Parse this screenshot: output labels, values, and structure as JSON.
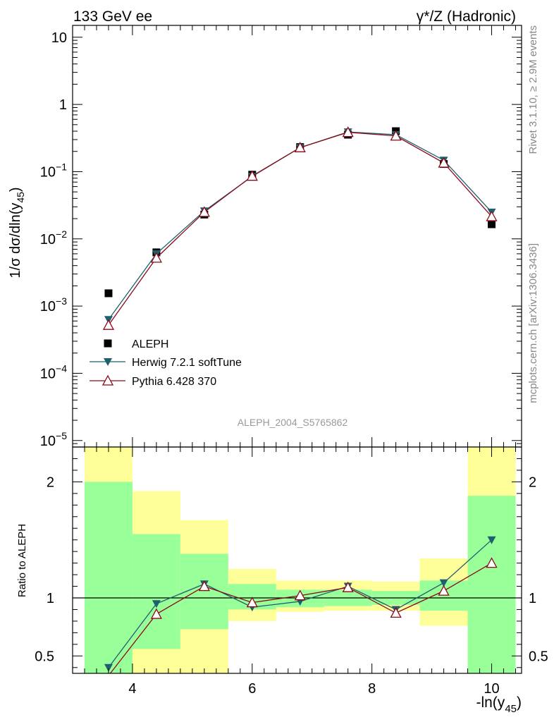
{
  "header": {
    "left": "133 GeV ee",
    "right": "γ*/Z (Hadronic)"
  },
  "side_notes": {
    "rivet": "Rivet 3.1.10, ≥ 2.9M events",
    "mcplots": "mcplots.cern.ch [arXiv:1306.3436]"
  },
  "analysis_label": "ALEPH_2004_S5765862",
  "colors": {
    "aleph": "#000000",
    "herwig": "#1f5f6e",
    "pythia": "#8b0a1a",
    "band_inner": "#99ff99",
    "band_outer": "#ffff99"
  },
  "chart_data": [
    {
      "type": "scatter",
      "title": "133 GeV ee — γ*/Z (Hadronic)",
      "xlabel": "-ln(y45)",
      "ylabel": "1/σ dσ/dln(y45)",
      "yscale": "log",
      "xlim": [
        3.0,
        10.5
      ],
      "ylim": [
        8e-06,
        15
      ],
      "grid": false,
      "legend": "middle-left",
      "ytick_labels": [
        "10",
        "1",
        "10−1",
        "10−2",
        "10−3",
        "10−4",
        "10−5"
      ],
      "series": [
        {
          "name": "ALEPH",
          "marker": "square",
          "x": [
            3.6,
            4.4,
            5.2,
            6.0,
            6.8,
            7.6,
            8.4,
            9.2,
            10.0
          ],
          "values": [
            0.00155,
            0.0063,
            0.023,
            0.09,
            0.232,
            0.355,
            0.4,
            0.13,
            0.0165
          ]
        },
        {
          "name": "Herwig 7.2.1 softTune",
          "marker": "triangle-down",
          "x": [
            3.6,
            4.4,
            5.2,
            6.0,
            6.8,
            7.6,
            8.4,
            9.2,
            10.0
          ],
          "values": [
            0.00063,
            0.006,
            0.026,
            0.085,
            0.228,
            0.39,
            0.355,
            0.148,
            0.025
          ]
        },
        {
          "name": "Pythia 6.428 370",
          "marker": "triangle-up-open",
          "x": [
            3.6,
            4.4,
            5.2,
            6.0,
            6.8,
            7.6,
            8.4,
            9.2,
            10.0
          ],
          "values": [
            0.00052,
            0.0052,
            0.025,
            0.086,
            0.228,
            0.385,
            0.34,
            0.135,
            0.0215
          ]
        }
      ]
    },
    {
      "type": "line",
      "ylabel": "Ratio to ALEPH",
      "xlabel": "-ln(y45)",
      "xlim": [
        3.0,
        10.5
      ],
      "ylim": [
        0.35,
        2.3
      ],
      "reference_line": 1,
      "xtick_labels": [
        "4",
        "6",
        "8",
        "10"
      ],
      "ytick_labels": [
        "0.5",
        "1",
        "2"
      ],
      "bands": [
        {
          "x0": 3.2,
          "x1": 4.0,
          "inner": [
            0.35,
            2.0
          ],
          "outer": [
            0.35,
            2.3
          ]
        },
        {
          "x0": 4.0,
          "x1": 4.8,
          "inner": [
            0.56,
            1.55
          ],
          "outer": [
            0.35,
            1.92
          ]
        },
        {
          "x0": 4.8,
          "x1": 5.6,
          "inner": [
            0.73,
            1.38
          ],
          "outer": [
            0.35,
            1.67
          ]
        },
        {
          "x0": 5.6,
          "x1": 6.4,
          "inner": [
            0.9,
            1.12
          ],
          "outer": [
            0.8,
            1.25
          ]
        },
        {
          "x0": 6.4,
          "x1": 7.2,
          "inner": [
            0.92,
            1.07
          ],
          "outer": [
            0.88,
            1.15
          ]
        },
        {
          "x0": 7.2,
          "x1": 8.0,
          "inner": [
            0.93,
            1.07
          ],
          "outer": [
            0.89,
            1.15
          ]
        },
        {
          "x0": 8.0,
          "x1": 8.8,
          "inner": [
            0.94,
            1.06
          ],
          "outer": [
            0.89,
            1.14
          ]
        },
        {
          "x0": 8.8,
          "x1": 9.6,
          "inner": [
            0.89,
            1.15
          ],
          "outer": [
            0.76,
            1.34
          ]
        },
        {
          "x0": 9.6,
          "x1": 10.4,
          "inner": [
            0.35,
            1.88
          ],
          "outer": [
            0.35,
            2.3
          ]
        }
      ],
      "series": [
        {
          "name": "Herwig 7.2.1 softTune",
          "marker": "triangle-down",
          "x": [
            3.6,
            4.4,
            5.2,
            6.0,
            6.8,
            7.6,
            8.4,
            9.2,
            10.0
          ],
          "values": [
            0.4,
            0.95,
            1.12,
            0.92,
            0.97,
            1.1,
            0.9,
            1.13,
            1.5
          ]
        },
        {
          "name": "Pythia 6.428 370",
          "marker": "triangle-up-open",
          "x": [
            3.6,
            4.4,
            5.2,
            6.0,
            6.8,
            7.6,
            8.4,
            9.2,
            10.0
          ],
          "values": [
            0.33,
            0.86,
            1.1,
            0.96,
            1.02,
            1.09,
            0.87,
            1.06,
            1.3
          ]
        }
      ]
    }
  ]
}
